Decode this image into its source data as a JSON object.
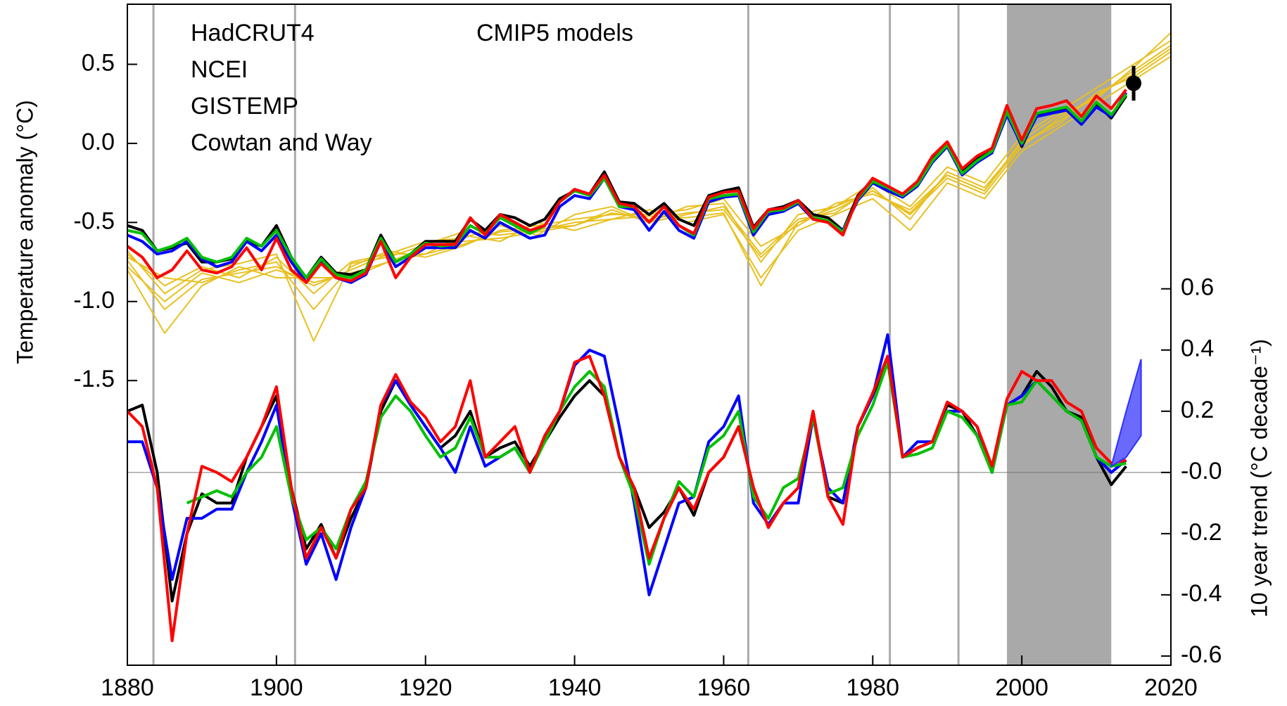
{
  "chart_data": {
    "type": "line",
    "xlim": [
      1880,
      2020
    ],
    "xticks": [
      1880,
      1900,
      1920,
      1940,
      1960,
      1980,
      2000,
      2020
    ],
    "ylim": [
      -3.3,
      0.88
    ],
    "yticks": [
      0.5,
      {
        "value": 0,
        "label": "0.0"
      },
      -0.5,
      {
        "value": -1,
        "label": "-1.0"
      },
      -1.5
    ],
    "y2lim": [
      -0.63,
      1.53
    ],
    "y2ticks": [
      0.6,
      0.4,
      0.2,
      {
        "value": 0,
        "label": "-0.0"
      },
      -0.2,
      -0.4,
      -0.6
    ],
    "ylabel": "Temperature anomaly (°C)",
    "y2label": "10 year trend (°C decade⁻¹)",
    "x": [
      1880,
      1882,
      1884,
      1886,
      1888,
      1890,
      1892,
      1894,
      1896,
      1898,
      1900,
      1902,
      1904,
      1906,
      1908,
      1910,
      1912,
      1914,
      1916,
      1918,
      1920,
      1922,
      1924,
      1926,
      1928,
      1930,
      1932,
      1934,
      1936,
      1938,
      1940,
      1942,
      1944,
      1946,
      1948,
      1950,
      1952,
      1954,
      1956,
      1958,
      1960,
      1962,
      1964,
      1966,
      1968,
      1970,
      1972,
      1974,
      1976,
      1978,
      1980,
      1982,
      1984,
      1986,
      1988,
      1990,
      1992,
      1994,
      1996,
      1998,
      2000,
      2002,
      2004,
      2006,
      2008,
      2010,
      2012,
      2014
    ],
    "series": [
      {
        "name": "HadCRUT4",
        "color": "#000000",
        "values": [
          -0.52,
          -0.55,
          -0.68,
          -0.66,
          -0.63,
          -0.75,
          -0.75,
          -0.73,
          -0.62,
          -0.65,
          -0.52,
          -0.72,
          -0.85,
          -0.72,
          -0.82,
          -0.83,
          -0.8,
          -0.58,
          -0.75,
          -0.7,
          -0.62,
          -0.62,
          -0.62,
          -0.48,
          -0.55,
          -0.45,
          -0.47,
          -0.52,
          -0.48,
          -0.35,
          -0.3,
          -0.32,
          -0.18,
          -0.37,
          -0.38,
          -0.45,
          -0.38,
          -0.48,
          -0.52,
          -0.33,
          -0.3,
          -0.28,
          -0.53,
          -0.42,
          -0.4,
          -0.36,
          -0.45,
          -0.47,
          -0.55,
          -0.33,
          -0.23,
          -0.28,
          -0.32,
          -0.26,
          -0.1,
          0.0,
          -0.18,
          -0.1,
          -0.05,
          0.2,
          -0.02,
          0.18,
          0.2,
          0.22,
          0.13,
          0.25,
          0.16,
          0.3
        ]
      },
      {
        "name": "NCEI",
        "color": "#0000ff",
        "values": [
          -0.58,
          -0.62,
          -0.7,
          -0.68,
          -0.62,
          -0.73,
          -0.78,
          -0.75,
          -0.62,
          -0.68,
          -0.58,
          -0.75,
          -0.88,
          -0.75,
          -0.85,
          -0.88,
          -0.83,
          -0.62,
          -0.78,
          -0.72,
          -0.66,
          -0.66,
          -0.66,
          -0.55,
          -0.6,
          -0.5,
          -0.55,
          -0.6,
          -0.58,
          -0.4,
          -0.33,
          -0.35,
          -0.22,
          -0.4,
          -0.42,
          -0.55,
          -0.43,
          -0.55,
          -0.6,
          -0.37,
          -0.34,
          -0.33,
          -0.58,
          -0.45,
          -0.43,
          -0.38,
          -0.48,
          -0.5,
          -0.55,
          -0.36,
          -0.25,
          -0.3,
          -0.34,
          -0.27,
          -0.12,
          -0.02,
          -0.2,
          -0.12,
          -0.06,
          0.18,
          -0.01,
          0.17,
          0.19,
          0.21,
          0.12,
          0.23,
          0.17,
          0.32
        ]
      },
      {
        "name": "GISTEMP",
        "color": "#00c000",
        "values": [
          -0.55,
          -0.57,
          -0.68,
          -0.65,
          -0.6,
          -0.72,
          -0.75,
          -0.72,
          -0.6,
          -0.65,
          -0.55,
          -0.72,
          -0.85,
          -0.73,
          -0.83,
          -0.85,
          -0.8,
          -0.6,
          -0.75,
          -0.7,
          -0.63,
          -0.65,
          -0.64,
          -0.52,
          -0.57,
          -0.47,
          -0.52,
          -0.57,
          -0.52,
          -0.37,
          -0.3,
          -0.33,
          -0.22,
          -0.4,
          -0.4,
          -0.5,
          -0.4,
          -0.52,
          -0.58,
          -0.35,
          -0.33,
          -0.32,
          -0.56,
          -0.43,
          -0.42,
          -0.37,
          -0.47,
          -0.49,
          -0.56,
          -0.35,
          -0.24,
          -0.28,
          -0.33,
          -0.26,
          -0.11,
          -0.01,
          -0.19,
          -0.11,
          -0.05,
          0.2,
          0.0,
          0.19,
          0.21,
          0.23,
          0.14,
          0.26,
          0.18,
          0.31
        ]
      },
      {
        "name": "Cowtan and Way",
        "color": "#ff0000",
        "values": [
          -0.65,
          -0.72,
          -0.85,
          -0.8,
          -0.68,
          -0.8,
          -0.82,
          -0.78,
          -0.66,
          -0.8,
          -0.6,
          -0.8,
          -0.88,
          -0.76,
          -0.85,
          -0.87,
          -0.82,
          -0.62,
          -0.85,
          -0.72,
          -0.64,
          -0.64,
          -0.64,
          -0.47,
          -0.58,
          -0.45,
          -0.5,
          -0.55,
          -0.52,
          -0.37,
          -0.29,
          -0.32,
          -0.2,
          -0.38,
          -0.4,
          -0.5,
          -0.4,
          -0.52,
          -0.57,
          -0.34,
          -0.31,
          -0.3,
          -0.54,
          -0.42,
          -0.41,
          -0.36,
          -0.48,
          -0.5,
          -0.58,
          -0.34,
          -0.22,
          -0.27,
          -0.32,
          -0.24,
          -0.08,
          0.01,
          -0.16,
          -0.08,
          -0.03,
          0.24,
          0.02,
          0.22,
          0.24,
          0.27,
          0.17,
          0.3,
          0.22,
          0.34
        ]
      }
    ],
    "trend_series": [
      {
        "color": "#000000",
        "axis": "y2",
        "values": [
          0.2,
          0.22,
          0.0,
          -0.42,
          -0.2,
          -0.07,
          -0.1,
          -0.1,
          0.05,
          0.15,
          0.25,
          -0.05,
          -0.25,
          -0.17,
          -0.28,
          -0.15,
          -0.05,
          0.2,
          0.3,
          0.22,
          0.15,
          0.08,
          0.12,
          0.2,
          0.05,
          0.08,
          0.1,
          0.02,
          0.1,
          0.18,
          0.25,
          0.3,
          0.25,
          0.05,
          -0.05,
          -0.18,
          -0.13,
          -0.05,
          -0.14,
          0.0,
          0.05,
          0.15,
          -0.05,
          -0.18,
          -0.1,
          -0.05,
          0.2,
          -0.08,
          -0.1,
          0.15,
          0.25,
          0.38,
          0.05,
          0.08,
          0.1,
          0.22,
          0.2,
          0.12,
          0.0,
          0.22,
          0.25,
          0.33,
          0.28,
          0.2,
          0.18,
          0.05,
          -0.04,
          0.02
        ]
      },
      {
        "color": "#0000ff",
        "axis": "y2",
        "values": [
          0.1,
          0.1,
          -0.05,
          -0.35,
          -0.15,
          -0.15,
          -0.12,
          -0.12,
          0.0,
          0.1,
          0.22,
          -0.08,
          -0.3,
          -0.2,
          -0.35,
          -0.18,
          -0.05,
          0.22,
          0.3,
          0.22,
          0.15,
          0.08,
          0.0,
          0.15,
          0.02,
          0.05,
          0.08,
          0.0,
          0.12,
          0.2,
          0.35,
          0.4,
          0.38,
          0.15,
          -0.1,
          -0.4,
          -0.25,
          -0.1,
          -0.08,
          0.1,
          0.15,
          0.25,
          -0.1,
          -0.17,
          -0.1,
          -0.1,
          0.18,
          -0.05,
          -0.1,
          0.15,
          0.25,
          0.45,
          0.05,
          0.1,
          0.1,
          0.2,
          0.2,
          0.15,
          0.0,
          0.22,
          0.25,
          0.3,
          0.25,
          0.2,
          0.17,
          0.05,
          0.0,
          0.04
        ]
      },
      {
        "color": "#00c000",
        "axis": "y2",
        "values": [
          null,
          null,
          null,
          null,
          -0.1,
          -0.08,
          -0.06,
          -0.08,
          0.0,
          0.05,
          0.15,
          -0.08,
          -0.22,
          -0.18,
          -0.25,
          -0.12,
          -0.03,
          0.18,
          0.25,
          0.2,
          0.12,
          0.05,
          0.08,
          0.18,
          0.05,
          0.05,
          0.08,
          0.0,
          0.1,
          0.2,
          0.28,
          0.33,
          0.28,
          0.05,
          -0.08,
          -0.3,
          -0.15,
          -0.03,
          -0.08,
          0.08,
          0.12,
          0.2,
          -0.08,
          -0.15,
          -0.05,
          -0.02,
          0.18,
          -0.07,
          -0.05,
          0.12,
          0.22,
          0.36,
          0.05,
          0.06,
          0.08,
          0.2,
          0.18,
          0.12,
          0.0,
          0.22,
          0.23,
          0.3,
          0.25,
          0.2,
          0.17,
          0.05,
          0.02,
          0.03
        ]
      },
      {
        "color": "#ff0000",
        "axis": "y2",
        "values": [
          0.2,
          0.15,
          -0.05,
          -0.55,
          -0.2,
          0.02,
          0.0,
          -0.03,
          0.05,
          0.15,
          0.28,
          -0.05,
          -0.28,
          -0.18,
          -0.28,
          -0.12,
          -0.05,
          0.22,
          0.32,
          0.23,
          0.18,
          0.1,
          0.15,
          0.3,
          0.05,
          0.1,
          0.15,
          0.0,
          0.12,
          0.2,
          0.36,
          0.38,
          0.25,
          0.05,
          -0.05,
          -0.28,
          -0.15,
          -0.05,
          -0.12,
          0.0,
          0.05,
          0.15,
          -0.05,
          -0.18,
          -0.1,
          -0.05,
          0.2,
          -0.08,
          -0.17,
          0.15,
          0.26,
          0.38,
          0.05,
          0.08,
          0.1,
          0.23,
          0.2,
          0.15,
          0.02,
          0.24,
          0.33,
          0.3,
          0.3,
          0.23,
          0.2,
          0.08,
          0.03,
          0.04
        ]
      }
    ],
    "models": {
      "label": "CMIP5 models",
      "color": "#e8c020",
      "x": [
        1880,
        1885,
        1890,
        1895,
        1900,
        1905,
        1910,
        1915,
        1920,
        1925,
        1930,
        1935,
        1940,
        1945,
        1950,
        1955,
        1960,
        1965,
        1970,
        1975,
        1980,
        1985,
        1990,
        1995,
        2000,
        2005,
        2010,
        2015,
        2020
      ],
      "series": [
        [
          -0.7,
          -0.9,
          -0.78,
          -0.85,
          -0.72,
          -0.95,
          -0.75,
          -0.7,
          -0.62,
          -0.6,
          -0.52,
          -0.58,
          -0.45,
          -0.4,
          -0.5,
          -0.4,
          -0.38,
          -0.75,
          -0.45,
          -0.4,
          -0.25,
          -0.4,
          -0.15,
          -0.25,
          0.05,
          0.2,
          0.35,
          0.5,
          0.65
        ],
        [
          -0.8,
          -1.2,
          -0.9,
          -0.78,
          -0.85,
          -0.85,
          -0.85,
          -0.75,
          -0.7,
          -0.58,
          -0.62,
          -0.5,
          -0.55,
          -0.48,
          -0.42,
          -0.5,
          -0.45,
          -0.85,
          -0.55,
          -0.45,
          -0.35,
          -0.55,
          -0.25,
          -0.35,
          -0.05,
          0.1,
          0.25,
          0.4,
          0.55
        ],
        [
          -0.72,
          -0.85,
          -0.88,
          -0.8,
          -0.75,
          -1.05,
          -0.78,
          -0.68,
          -0.72,
          -0.65,
          -0.55,
          -0.52,
          -0.48,
          -0.45,
          -0.45,
          -0.42,
          -0.35,
          -0.65,
          -0.52,
          -0.38,
          -0.32,
          -0.42,
          -0.2,
          -0.3,
          0.02,
          0.18,
          0.28,
          0.48,
          0.7
        ],
        [
          -0.78,
          -1.0,
          -0.82,
          -0.88,
          -0.8,
          -0.88,
          -0.82,
          -0.75,
          -0.66,
          -0.62,
          -0.6,
          -0.56,
          -0.52,
          -0.42,
          -0.5,
          -0.45,
          -0.4,
          -0.7,
          -0.48,
          -0.44,
          -0.28,
          -0.48,
          -0.18,
          -0.28,
          0.0,
          0.12,
          0.32,
          0.42,
          0.58
        ],
        [
          -0.68,
          -0.95,
          -0.8,
          -0.76,
          -0.7,
          -1.25,
          -0.76,
          -0.72,
          -0.64,
          -0.56,
          -0.58,
          -0.55,
          -0.5,
          -0.48,
          -0.46,
          -0.47,
          -0.44,
          -0.9,
          -0.5,
          -0.4,
          -0.3,
          -0.45,
          -0.22,
          -0.32,
          -0.02,
          0.16,
          0.3,
          0.46,
          0.62
        ],
        [
          -0.74,
          -1.05,
          -0.86,
          -0.82,
          -0.78,
          -0.9,
          -0.8,
          -0.7,
          -0.7,
          -0.64,
          -0.56,
          -0.54,
          -0.52,
          -0.44,
          -0.48,
          -0.44,
          -0.42,
          -0.72,
          -0.5,
          -0.42,
          -0.3,
          -0.44,
          -0.2,
          -0.3,
          0.0,
          0.14,
          0.3,
          0.44,
          0.6
        ]
      ]
    },
    "band": {
      "color": "#6a6aff",
      "x": [
        2012,
        2014,
        2016
      ],
      "lower": [
        0.02,
        0.05,
        0.12
      ],
      "upper": [
        0.02,
        0.2,
        0.37
      ]
    },
    "point": {
      "color": "#000000",
      "x": 2015,
      "value": 0.38,
      "error": 0.11
    },
    "vlines": [
      1883.5,
      1902.5,
      1963.3,
      1982.3,
      1991.5
    ],
    "shade": {
      "range": [
        1998,
        2012
      ],
      "color": "#a9a9a9"
    }
  }
}
